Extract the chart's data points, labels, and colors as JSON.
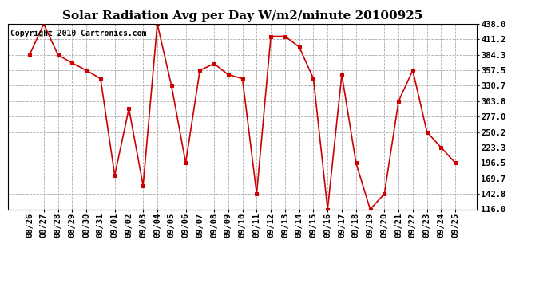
{
  "title": "Solar Radiation Avg per Day W/m2/minute 20100925",
  "copyright": "Copyright 2010 Cartronics.com",
  "dates": [
    "08/26",
    "08/27",
    "08/28",
    "08/29",
    "08/30",
    "08/31",
    "09/01",
    "09/02",
    "09/03",
    "09/04",
    "09/05",
    "09/06",
    "09/07",
    "09/08",
    "09/09",
    "09/10",
    "09/11",
    "09/12",
    "09/13",
    "09/14",
    "09/15",
    "09/16",
    "09/17",
    "09/18",
    "09/19",
    "09/20",
    "09/21",
    "09/22",
    "09/23",
    "09/24",
    "09/25"
  ],
  "values": [
    384.3,
    438.0,
    384.3,
    370.0,
    357.5,
    343.0,
    175.0,
    291.0,
    157.0,
    438.0,
    330.7,
    196.5,
    357.5,
    369.0,
    350.0,
    343.0,
    142.8,
    416.5,
    416.5,
    398.0,
    343.0,
    116.0,
    350.0,
    196.5,
    116.0,
    142.8,
    303.8,
    357.5,
    250.2,
    223.3,
    196.5
  ],
  "line_color": "#cc0000",
  "marker_color": "#cc0000",
  "bg_color": "#ffffff",
  "grid_color": "#aaaaaa",
  "ylim": [
    116.0,
    438.0
  ],
  "yticks": [
    116.0,
    142.8,
    169.7,
    196.5,
    223.3,
    250.2,
    277.0,
    303.8,
    330.7,
    357.5,
    384.3,
    411.2,
    438.0
  ],
  "title_fontsize": 11,
  "copyright_fontsize": 7,
  "tick_fontsize": 7.5
}
